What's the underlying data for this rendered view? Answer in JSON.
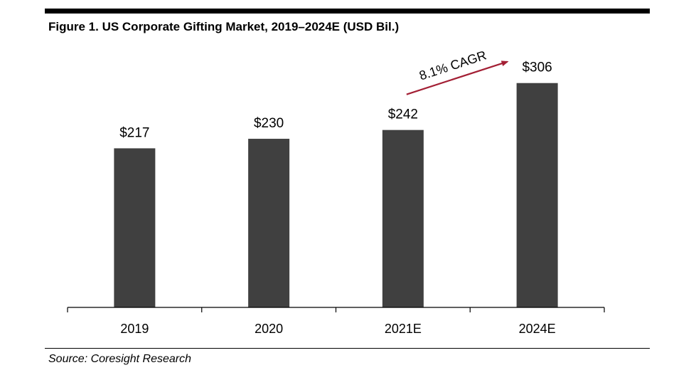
{
  "figure": {
    "title": "Figure 1. US Corporate Gifting Market, 2019–2024E (USD Bil.)",
    "source": "Source: Coresight Research"
  },
  "chart_data": {
    "type": "bar",
    "categories": [
      "2019",
      "2020",
      "2021E",
      "2024E"
    ],
    "values": [
      217,
      230,
      242,
      306
    ],
    "data_labels": [
      "$217",
      "$230",
      "$242",
      "$306"
    ],
    "title": "Figure 1. US Corporate Gifting Market, 2019–2024E (USD Bil.)",
    "xlabel": "",
    "ylabel": "",
    "ylim": [
      0,
      330
    ],
    "grid": false,
    "legend": "none",
    "bar_color": "#404040",
    "annotation": {
      "text": "8.1% CAGR",
      "from_category": "2021E",
      "to_category": "2024E",
      "color": "#A31F34"
    }
  }
}
